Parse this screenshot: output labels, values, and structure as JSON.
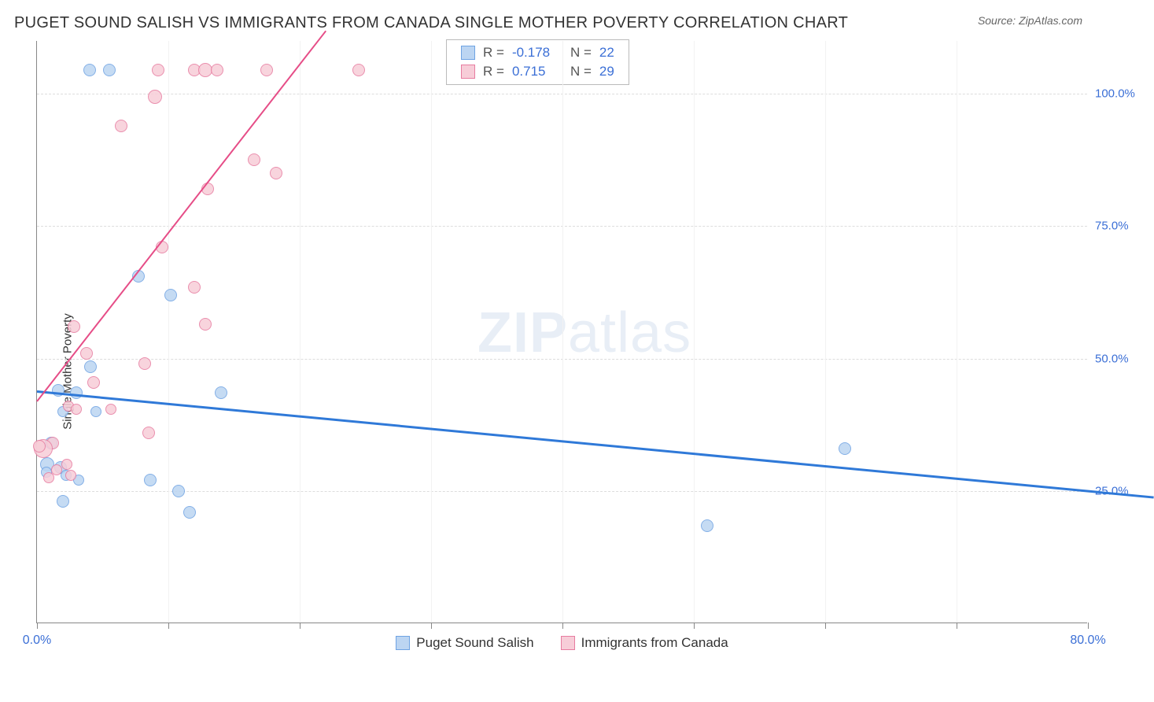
{
  "title": "PUGET SOUND SALISH VS IMMIGRANTS FROM CANADA SINGLE MOTHER POVERTY CORRELATION CHART",
  "source": "Source: ZipAtlas.com",
  "ylabel": "Single Mother Poverty",
  "watermark_a": "ZIP",
  "watermark_b": "atlas",
  "chart": {
    "type": "scatter",
    "xlim": [
      0,
      80
    ],
    "ylim": [
      0,
      110
    ],
    "ytick_values": [
      25,
      50,
      75,
      100
    ],
    "ytick_labels": [
      "25.0%",
      "50.0%",
      "75.0%",
      "100.0%"
    ],
    "ytick_color": "#3b6fd6",
    "xtick_positions": [
      0,
      10,
      20,
      30,
      40,
      50,
      60,
      70,
      80
    ],
    "xtick_labels_shown": {
      "0": "0.0%",
      "80": "80.0%"
    },
    "xtick_color": "#3b6fd6",
    "grid_color": "#dddddd",
    "background_color": "#ffffff",
    "plot_border_color": "#888888"
  },
  "series": [
    {
      "name": "Puget Sound Salish",
      "fill": "#bcd5f2",
      "stroke": "#6fa3e3",
      "trend_color": "#2f79d8",
      "trend_width": 2.5,
      "R_label": "R =",
      "R": "-0.178",
      "N_label": "N =",
      "N": "22",
      "trend": {
        "x1": 0,
        "y1": 44,
        "x2": 85,
        "y2": 24
      },
      "points": [
        {
          "x": 4.0,
          "y": 104.5,
          "r": 8
        },
        {
          "x": 5.5,
          "y": 104.5,
          "r": 8
        },
        {
          "x": 7.7,
          "y": 65.5,
          "r": 8
        },
        {
          "x": 10.2,
          "y": 62.0,
          "r": 8
        },
        {
          "x": 4.1,
          "y": 48.5,
          "r": 8
        },
        {
          "x": 1.6,
          "y": 44.0,
          "r": 8
        },
        {
          "x": 3.0,
          "y": 43.5,
          "r": 8
        },
        {
          "x": 14.0,
          "y": 43.5,
          "r": 8
        },
        {
          "x": 2.0,
          "y": 40.0,
          "r": 7
        },
        {
          "x": 4.5,
          "y": 40.0,
          "r": 7
        },
        {
          "x": 1.1,
          "y": 34.0,
          "r": 8
        },
        {
          "x": 0.8,
          "y": 30.0,
          "r": 9
        },
        {
          "x": 1.8,
          "y": 29.5,
          "r": 8
        },
        {
          "x": 2.2,
          "y": 28.0,
          "r": 7
        },
        {
          "x": 3.2,
          "y": 27.0,
          "r": 7
        },
        {
          "x": 8.6,
          "y": 27.0,
          "r": 8
        },
        {
          "x": 10.8,
          "y": 25.0,
          "r": 8
        },
        {
          "x": 2.0,
          "y": 23.0,
          "r": 8
        },
        {
          "x": 11.6,
          "y": 21.0,
          "r": 8
        },
        {
          "x": 51.0,
          "y": 18.5,
          "r": 8
        },
        {
          "x": 61.5,
          "y": 33.0,
          "r": 8
        },
        {
          "x": 0.7,
          "y": 28.5,
          "r": 7
        }
      ]
    },
    {
      "name": "Immigrants from Canada",
      "fill": "#f7cdd8",
      "stroke": "#e77ca0",
      "trend_color": "#e64d87",
      "trend_width": 2,
      "R_label": "R =",
      "R": "0.715",
      "N_label": "N =",
      "N": "29",
      "trend": {
        "x1": 0,
        "y1": 42,
        "x2": 22,
        "y2": 112
      },
      "points": [
        {
          "x": 9.2,
          "y": 104.5,
          "r": 8
        },
        {
          "x": 12.0,
          "y": 104.5,
          "r": 8
        },
        {
          "x": 12.8,
          "y": 104.5,
          "r": 9
        },
        {
          "x": 13.7,
          "y": 104.5,
          "r": 8
        },
        {
          "x": 17.5,
          "y": 104.5,
          "r": 8
        },
        {
          "x": 24.5,
          "y": 104.5,
          "r": 8
        },
        {
          "x": 9.0,
          "y": 99.5,
          "r": 9
        },
        {
          "x": 6.4,
          "y": 94.0,
          "r": 8
        },
        {
          "x": 16.5,
          "y": 87.5,
          "r": 8
        },
        {
          "x": 18.2,
          "y": 85.0,
          "r": 8
        },
        {
          "x": 13.0,
          "y": 82.0,
          "r": 8
        },
        {
          "x": 9.5,
          "y": 71.0,
          "r": 8
        },
        {
          "x": 12.0,
          "y": 63.5,
          "r": 8
        },
        {
          "x": 12.8,
          "y": 56.5,
          "r": 8
        },
        {
          "x": 2.8,
          "y": 56.0,
          "r": 8
        },
        {
          "x": 3.8,
          "y": 51.0,
          "r": 8
        },
        {
          "x": 8.2,
          "y": 49.0,
          "r": 8
        },
        {
          "x": 4.3,
          "y": 45.5,
          "r": 8
        },
        {
          "x": 2.4,
          "y": 41.0,
          "r": 7
        },
        {
          "x": 3.0,
          "y": 40.5,
          "r": 7
        },
        {
          "x": 5.6,
          "y": 40.5,
          "r": 7
        },
        {
          "x": 8.5,
          "y": 36.0,
          "r": 8
        },
        {
          "x": 1.2,
          "y": 34.0,
          "r": 8
        },
        {
          "x": 0.5,
          "y": 33.0,
          "r": 12
        },
        {
          "x": 0.2,
          "y": 33.5,
          "r": 8
        },
        {
          "x": 2.3,
          "y": 30.0,
          "r": 7
        },
        {
          "x": 1.5,
          "y": 29.0,
          "r": 7
        },
        {
          "x": 0.9,
          "y": 27.5,
          "r": 7
        },
        {
          "x": 2.6,
          "y": 28.0,
          "r": 7
        }
      ]
    }
  ],
  "legend_top": {
    "value_color": "#3b6fd6",
    "label_color": "#555555"
  },
  "legend_bottom_labels": [
    "Puget Sound Salish",
    "Immigrants from Canada"
  ]
}
